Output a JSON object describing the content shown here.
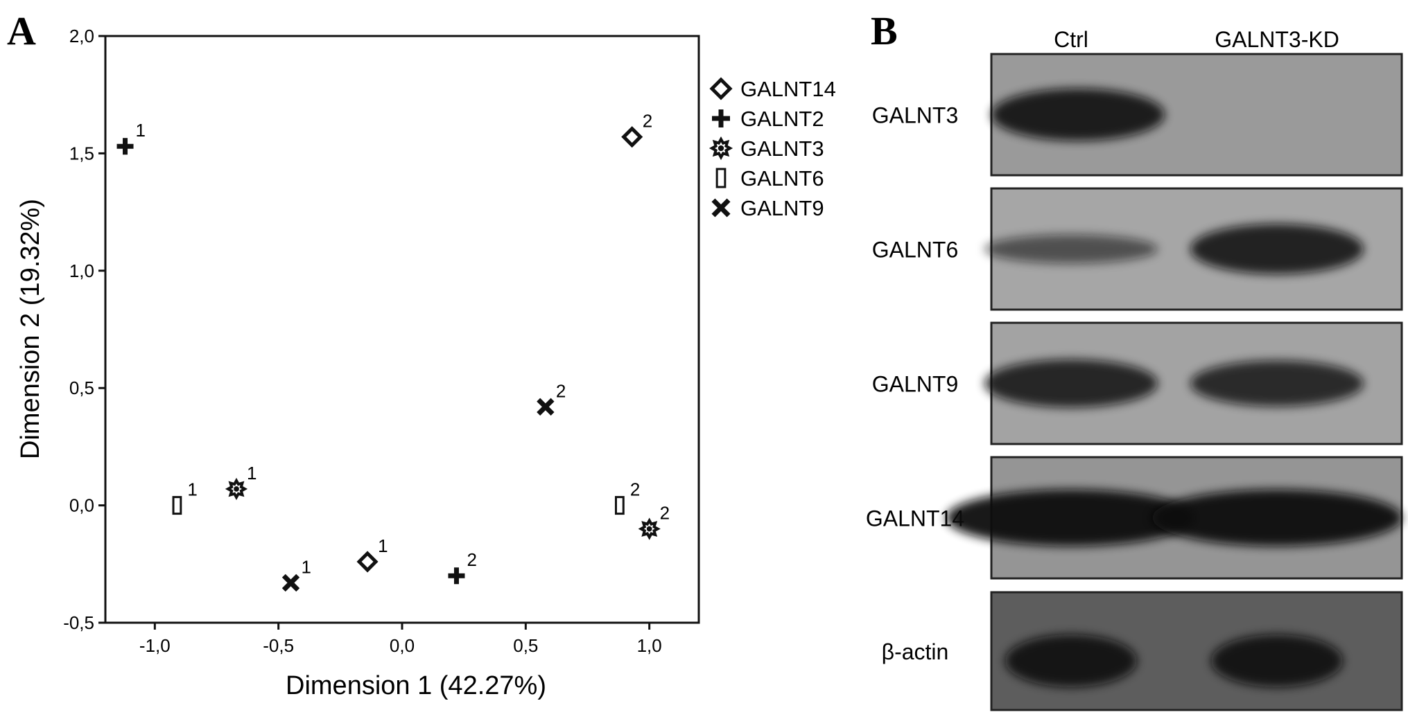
{
  "panel_a": {
    "letter": "A",
    "chart_data": {
      "type": "scatter",
      "xlabel": "Dimension 1 (42.27%)",
      "ylabel": "Dimension 2 (19.32%)",
      "xlim": [
        -1.2,
        1.2
      ],
      "ylim": [
        -0.5,
        2.0
      ],
      "xticks": [
        -1.0,
        -0.5,
        0.0,
        0.5,
        1.0
      ],
      "xtick_labels": [
        "-1,0",
        "-0,5",
        "0,0",
        "0,5",
        "1,0"
      ],
      "yticks": [
        -0.5,
        0.0,
        0.5,
        1.0,
        1.5,
        2.0
      ],
      "ytick_labels": [
        "-0,5",
        "0,0",
        "0,5",
        "1,0",
        "1,5",
        "2,0"
      ],
      "grid": false,
      "legend_position": "right",
      "series": [
        {
          "name": "GALNT14",
          "marker": "diamond",
          "points": [
            {
              "x": -0.14,
              "y": -0.24,
              "label": "1"
            },
            {
              "x": 0.93,
              "y": 1.57,
              "label": "2"
            }
          ]
        },
        {
          "name": "GALNT2",
          "marker": "plus",
          "points": [
            {
              "x": -1.12,
              "y": 1.53,
              "label": "1"
            },
            {
              "x": 0.22,
              "y": -0.3,
              "label": "2"
            }
          ]
        },
        {
          "name": "GALNT3",
          "marker": "star",
          "points": [
            {
              "x": -0.67,
              "y": 0.07,
              "label": "1"
            },
            {
              "x": 1.0,
              "y": -0.1,
              "label": "2"
            }
          ]
        },
        {
          "name": "GALNT6",
          "marker": "rect",
          "points": [
            {
              "x": -0.91,
              "y": 0.0,
              "label": "1"
            },
            {
              "x": 0.88,
              "y": 0.0,
              "label": "2"
            }
          ]
        },
        {
          "name": "GALNT9",
          "marker": "cross",
          "points": [
            {
              "x": -0.45,
              "y": -0.33,
              "label": "1"
            },
            {
              "x": 0.58,
              "y": 0.42,
              "label": "2"
            }
          ]
        }
      ]
    }
  },
  "panel_b": {
    "letter": "B",
    "columns": [
      "Ctrl",
      "GALNT3-KD"
    ],
    "blots": [
      {
        "label": "GALNT3",
        "background": "#9a9a9a",
        "ctrl": 0.9,
        "kd": 0.0
      },
      {
        "label": "GALNT6",
        "background": "#a6a6a6",
        "ctrl": 0.35,
        "kd": 0.85
      },
      {
        "label": "GALNT9",
        "background": "#a3a3a3",
        "ctrl": 0.8,
        "kd": 0.75
      },
      {
        "label": "GALNT14",
        "background": "#959595",
        "ctrl": 1.0,
        "kd": 1.0
      },
      {
        "label": "β-actin",
        "background": "#5d5d5d",
        "ctrl": 0.9,
        "kd": 0.9
      }
    ]
  }
}
